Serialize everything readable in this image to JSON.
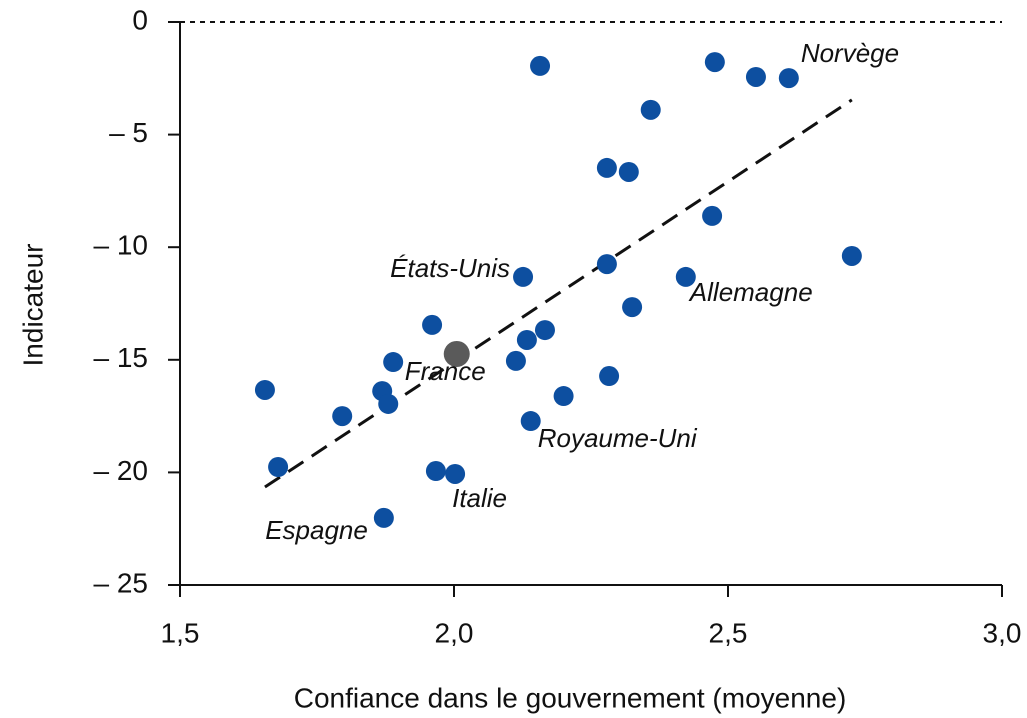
{
  "chart_data": {
    "type": "scatter",
    "x_label": "Confiance dans le gouvernement (moyenne)",
    "y_label": "Indicateur",
    "xlim": [
      1.5,
      3.0
    ],
    "ylim": [
      -25,
      0
    ],
    "xticks": [
      {
        "value": 1.5,
        "label": "1,5"
      },
      {
        "value": 2.0,
        "label": "2,0"
      },
      {
        "value": 2.5,
        "label": "2,5"
      },
      {
        "value": 3.0,
        "label": "3,0"
      }
    ],
    "yticks": [
      0,
      {
        "value": -5,
        "label": "– 5"
      },
      {
        "value": -10,
        "label": "– 10"
      },
      {
        "value": -15,
        "label": "– 15"
      },
      {
        "value": -20,
        "label": "– 20"
      },
      {
        "value": -25,
        "label": "– 25"
      }
    ],
    "hline": 0,
    "trendline": {
      "x": [
        1.655,
        2.726
      ],
      "y": [
        -20.65,
        -3.46
      ]
    },
    "series": [
      {
        "color": "#0d4fa0",
        "x": [
          2.157,
          2.476,
          2.551,
          2.611,
          2.359,
          2.279,
          2.319,
          2.471,
          2.726,
          2.279,
          2.126,
          2.423,
          2.325,
          1.96,
          2.166,
          2.133,
          2.113,
          1.889,
          1.655,
          1.869,
          1.88,
          1.796,
          2.283,
          2.2,
          2.14,
          1.679,
          1.967,
          2.002,
          1.872
        ],
        "y": [
          -1.95,
          -1.78,
          -2.44,
          -2.49,
          -3.9,
          -6.48,
          -6.66,
          -8.61,
          -10.39,
          -10.75,
          -11.32,
          -11.32,
          -12.66,
          -13.45,
          -13.68,
          -14.12,
          -15.05,
          -15.1,
          -16.34,
          -16.39,
          -16.96,
          -17.5,
          -15.72,
          -16.61,
          -17.72,
          -19.76,
          -19.94,
          -20.07,
          -22.02
        ],
        "labels": [
          null,
          null,
          null,
          "Norvège",
          null,
          null,
          null,
          null,
          null,
          null,
          "États-Unis",
          "Allemagne",
          null,
          null,
          null,
          null,
          null,
          null,
          null,
          null,
          null,
          null,
          null,
          null,
          "Royaume-Uni",
          null,
          null,
          "Italie",
          "Espagne"
        ]
      },
      {
        "color": "#5a5a5a",
        "x": [
          2.005
        ],
        "y": [
          -14.74
        ],
        "labels": [
          "France"
        ]
      }
    ]
  }
}
